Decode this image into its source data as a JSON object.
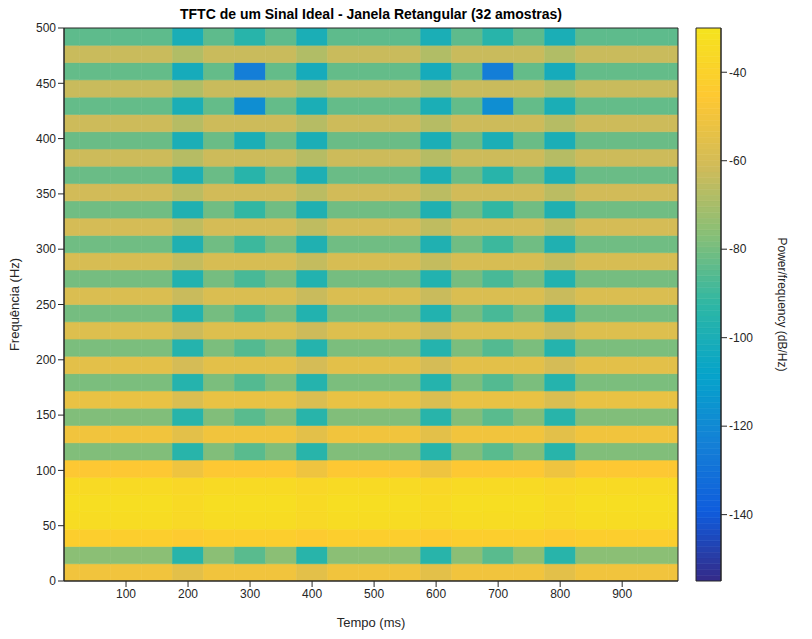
{
  "chart_data": {
    "type": "heatmap",
    "title": "TFTC de um Sinal Ideal - Janela Retangular (32 amostras)",
    "x_label": "Tempo (ms)",
    "y_label": "Frequência (Hz)",
    "xlim": [
      0,
      990
    ],
    "xticks": [
      100,
      200,
      300,
      400,
      500,
      600,
      700,
      800,
      900
    ],
    "ylim": [
      0,
      500
    ],
    "yticks": [
      0,
      50,
      100,
      150,
      200,
      250,
      300,
      350,
      400,
      450,
      500
    ],
    "grid": false,
    "time_bins": [
      0,
      25,
      75,
      125,
      175,
      225,
      275,
      325,
      375,
      425,
      475,
      525,
      575,
      625,
      675,
      725,
      775,
      825,
      875,
      925,
      975,
      990
    ],
    "freq_bins": [
      0,
      15.625,
      31.25,
      46.875,
      62.5,
      78.125,
      93.75,
      109.375,
      125,
      140.625,
      156.25,
      171.875,
      187.5,
      203.125,
      218.75,
      234.375,
      250,
      265.625,
      281.25,
      296.875,
      312.5,
      328.125,
      343.75,
      359.375,
      375,
      390.625,
      406.25,
      421.875,
      437.5,
      453.125,
      468.75,
      484.375,
      500
    ],
    "cells": [
      [
        -50,
        -50,
        -50,
        -50,
        -55,
        -50,
        -50,
        -50,
        -55,
        -50,
        -50,
        -50,
        -55,
        -50,
        -50,
        -50,
        -55,
        -50,
        -50,
        -50,
        -50
      ],
      [
        -76,
        -76,
        -76,
        -76,
        -95,
        -76,
        -85,
        -76,
        -95,
        -76,
        -76,
        -76,
        -95,
        -76,
        -85,
        -76,
        -95,
        -76,
        -76,
        -76,
        -76
      ],
      [
        -42,
        -42,
        -42,
        -42,
        -44,
        -42,
        -42,
        -42,
        -44,
        -42,
        -42,
        -42,
        -44,
        -42,
        -42,
        -42,
        -44,
        -42,
        -42,
        -42,
        -42
      ],
      [
        -34,
        -34,
        -34,
        -34,
        -36,
        -34,
        -34,
        -34,
        -36,
        -34,
        -34,
        -34,
        -36,
        -34,
        -34,
        -34,
        -36,
        -34,
        -34,
        -34,
        -34
      ],
      [
        -33,
        -33,
        -33,
        -33,
        -35,
        -33,
        -33,
        -33,
        -35,
        -33,
        -33,
        -33,
        -35,
        -33,
        -33,
        -33,
        -35,
        -33,
        -33,
        -33,
        -33
      ],
      [
        -35,
        -35,
        -35,
        -35,
        -37,
        -35,
        -35,
        -35,
        -37,
        -35,
        -35,
        -35,
        -37,
        -35,
        -35,
        -35,
        -37,
        -35,
        -35,
        -35,
        -35
      ],
      [
        -46,
        -46,
        -46,
        -46,
        -51,
        -46,
        -46,
        -46,
        -51,
        -46,
        -46,
        -46,
        -51,
        -46,
        -46,
        -46,
        -51,
        -46,
        -46,
        -46,
        -46
      ],
      [
        -78,
        -78,
        -78,
        -78,
        -95,
        -78,
        -85,
        -78,
        -95,
        -78,
        -78,
        -78,
        -95,
        -78,
        -85,
        -78,
        -95,
        -78,
        -78,
        -78,
        -78
      ],
      [
        -50,
        -50,
        -50,
        -50,
        -55,
        -50,
        -50,
        -50,
        -55,
        -50,
        -50,
        -50,
        -55,
        -50,
        -50,
        -50,
        -55,
        -50,
        -50,
        -50,
        -50
      ],
      [
        -78,
        -78,
        -78,
        -78,
        -95,
        -78,
        -85,
        -78,
        -95,
        -78,
        -78,
        -78,
        -95,
        -78,
        -85,
        -78,
        -95,
        -78,
        -78,
        -78,
        -78
      ],
      [
        -53,
        -53,
        -53,
        -53,
        -58,
        -53,
        -53,
        -53,
        -58,
        -53,
        -53,
        -53,
        -58,
        -53,
        -53,
        -53,
        -58,
        -53,
        -53,
        -53,
        -53
      ],
      [
        -79,
        -79,
        -79,
        -79,
        -96,
        -79,
        -86,
        -79,
        -96,
        -79,
        -79,
        -79,
        -96,
        -79,
        -86,
        -79,
        -96,
        -79,
        -79,
        -79,
        -79
      ],
      [
        -55,
        -55,
        -55,
        -55,
        -60,
        -55,
        -55,
        -55,
        -60,
        -55,
        -55,
        -55,
        -60,
        -55,
        -55,
        -55,
        -60,
        -55,
        -55,
        -55,
        -55
      ],
      [
        -79,
        -79,
        -79,
        -79,
        -96,
        -79,
        -86,
        -79,
        -96,
        -79,
        -79,
        -79,
        -96,
        -79,
        -86,
        -79,
        -96,
        -79,
        -79,
        -79,
        -79
      ],
      [
        -57,
        -57,
        -57,
        -57,
        -62,
        -57,
        -57,
        -57,
        -62,
        -57,
        -57,
        -57,
        -62,
        -57,
        -57,
        -57,
        -62,
        -57,
        -57,
        -57,
        -57
      ],
      [
        -80,
        -80,
        -80,
        -80,
        -97,
        -80,
        -88,
        -80,
        -97,
        -80,
        -80,
        -80,
        -97,
        -80,
        -88,
        -80,
        -97,
        -80,
        -80,
        -80,
        -80
      ],
      [
        -58,
        -58,
        -58,
        -58,
        -63,
        -58,
        -58,
        -58,
        -63,
        -58,
        -58,
        -58,
        -63,
        -58,
        -58,
        -58,
        -63,
        -58,
        -58,
        -58,
        -58
      ],
      [
        -80,
        -80,
        -80,
        -80,
        -97,
        -80,
        -88,
        -80,
        -97,
        -80,
        -80,
        -80,
        -97,
        -80,
        -88,
        -80,
        -97,
        -80,
        -80,
        -80,
        -80
      ],
      [
        -59,
        -59,
        -59,
        -59,
        -64,
        -59,
        -59,
        -59,
        -64,
        -59,
        -59,
        -59,
        -64,
        -59,
        -59,
        -59,
        -64,
        -59,
        -59,
        -59,
        -59
      ],
      [
        -81,
        -81,
        -81,
        -81,
        -98,
        -81,
        -90,
        -81,
        -98,
        -81,
        -81,
        -81,
        -98,
        -81,
        -90,
        -81,
        -98,
        -81,
        -81,
        -81,
        -81
      ],
      [
        -60,
        -60,
        -60,
        -60,
        -65,
        -60,
        -60,
        -60,
        -65,
        -60,
        -60,
        -60,
        -65,
        -60,
        -60,
        -60,
        -65,
        -60,
        -60,
        -60,
        -60
      ],
      [
        -81,
        -81,
        -81,
        -81,
        -98,
        -81,
        -92,
        -81,
        -98,
        -81,
        -81,
        -81,
        -98,
        -81,
        -92,
        -81,
        -98,
        -81,
        -81,
        -81,
        -81
      ],
      [
        -61,
        -61,
        -61,
        -61,
        -66,
        -61,
        -61,
        -61,
        -66,
        -61,
        -61,
        -61,
        -66,
        -61,
        -61,
        -61,
        -66,
        -61,
        -61,
        -61,
        -61
      ],
      [
        -82,
        -82,
        -82,
        -82,
        -99,
        -82,
        -95,
        -82,
        -99,
        -82,
        -82,
        -82,
        -99,
        -82,
        -95,
        -82,
        -99,
        -82,
        -82,
        -82,
        -82
      ],
      [
        -62,
        -62,
        -62,
        -62,
        -67,
        -62,
        -62,
        -62,
        -67,
        -62,
        -62,
        -62,
        -67,
        -62,
        -62,
        -62,
        -67,
        -62,
        -62,
        -62,
        -62
      ],
      [
        -82,
        -82,
        -82,
        -82,
        -100,
        -82,
        -100,
        -82,
        -100,
        -82,
        -82,
        -82,
        -100,
        -82,
        -100,
        -82,
        -100,
        -82,
        -82,
        -82,
        -82
      ],
      [
        -62,
        -62,
        -62,
        -62,
        -67,
        -62,
        -62,
        -62,
        -67,
        -62,
        -62,
        -62,
        -67,
        -62,
        -62,
        -62,
        -67,
        -62,
        -62,
        -62,
        -62
      ],
      [
        -83,
        -83,
        -83,
        -83,
        -100,
        -83,
        -118,
        -83,
        -100,
        -83,
        -83,
        -83,
        -100,
        -83,
        -118,
        -83,
        -100,
        -83,
        -83,
        -83,
        -83
      ],
      [
        -63,
        -63,
        -63,
        -63,
        -68,
        -63,
        -63,
        -63,
        -68,
        -63,
        -63,
        -63,
        -68,
        -63,
        -63,
        -63,
        -68,
        -63,
        -63,
        -63,
        -63
      ],
      [
        -83,
        -83,
        -83,
        -83,
        -102,
        -83,
        -125,
        -83,
        -102,
        -83,
        -83,
        -83,
        -102,
        -83,
        -125,
        -83,
        -102,
        -83,
        -83,
        -83,
        -83
      ],
      [
        -63,
        -63,
        -63,
        -63,
        -68,
        -63,
        -63,
        -63,
        -68,
        -63,
        -63,
        -63,
        -68,
        -63,
        -63,
        -63,
        -68,
        -63,
        -63,
        -63,
        -63
      ],
      [
        -84,
        -84,
        -84,
        -84,
        -100,
        -84,
        -95,
        -84,
        -100,
        -84,
        -84,
        -84,
        -100,
        -84,
        -95,
        -84,
        -100,
        -84,
        -84,
        -84,
        -84
      ]
    ],
    "colorbar": {
      "label": "Power/frequency (dB/Hz)",
      "lim": [
        -155,
        -30
      ],
      "ticks": [
        -140,
        -120,
        -100,
        -80,
        -60,
        -40
      ]
    }
  }
}
